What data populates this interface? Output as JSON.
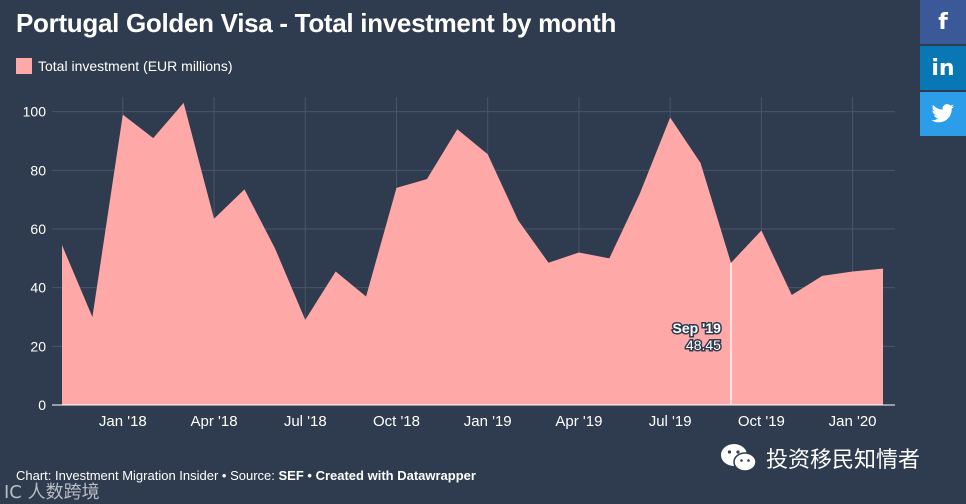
{
  "title": "Portugal Golden Visa - Total investment by month",
  "legend_label": "Total investment (EUR millions)",
  "footer": {
    "chart_prefix": "Chart: Investment Migration Insider • Source: ",
    "source_bold": "SEF",
    "created": " • Created with Datawrapper"
  },
  "watermark_left": "IC 人数跨境",
  "watermark_right": "投资移民知情者",
  "social": {
    "facebook": "f",
    "linkedin": "in",
    "twitter": "twitter-icon"
  },
  "colors": {
    "background": "#2f3b4e",
    "area": "#ffa8a8",
    "grid": "#4a5668",
    "text": "#ffffff"
  },
  "tooltip": {
    "label": "Sep '19",
    "value": "48.45"
  },
  "chart_data": {
    "type": "area",
    "title": "Portugal Golden Visa - Total investment by month",
    "series": [
      {
        "name": "Total investment (EUR millions)",
        "x": [
          "Nov '17",
          "Dec '17",
          "Jan '18",
          "Feb '18",
          "Mar '18",
          "Apr '18",
          "May '18",
          "Jun '18",
          "Jul '18",
          "Aug '18",
          "Sep '18",
          "Oct '18",
          "Nov '18",
          "Dec '18",
          "Jan '19",
          "Feb '19",
          "Mar '19",
          "Apr '19",
          "May '19",
          "Jun '19",
          "Jul '19",
          "Aug '19",
          "Sep '19",
          "Oct '19",
          "Nov '19",
          "Dec '19",
          "Jan '20",
          "Feb '20"
        ],
        "values": [
          54.5,
          30,
          99,
          91,
          103,
          63.5,
          73.5,
          53.5,
          29,
          45.5,
          37,
          74,
          77,
          94,
          85.5,
          63,
          48.5,
          52,
          50,
          72,
          98,
          82.5,
          48.45,
          59.5,
          37.5,
          44,
          45.5,
          46.5
        ]
      }
    ],
    "xtick_labels": [
      "Jan '18",
      "Apr '18",
      "Jul '18",
      "Oct '18",
      "Jan '19",
      "Apr '19",
      "Jul '19",
      "Oct '19",
      "Jan '20"
    ],
    "xtick_index": [
      2,
      5,
      8,
      11,
      14,
      17,
      20,
      23,
      26
    ],
    "yticks": [
      0,
      20,
      40,
      60,
      80,
      100
    ],
    "ylim": [
      0,
      105
    ],
    "grid": true,
    "legend_position": "top-left"
  }
}
